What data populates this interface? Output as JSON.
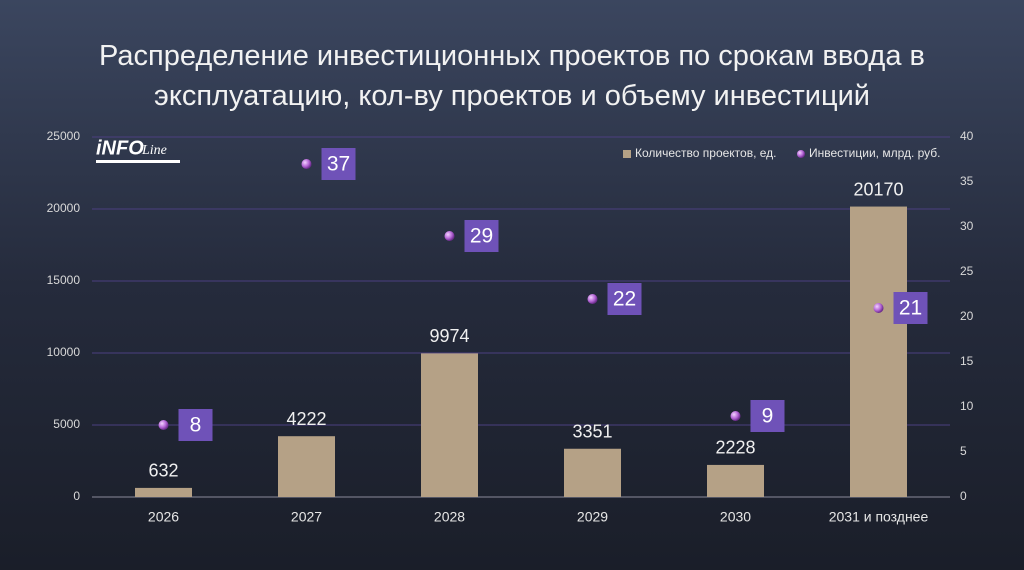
{
  "chart_data": {
    "type": "bar",
    "title": "Распределение инвестиционных проектов по срокам ввода в эксплуатацию, кол-ву проектов и объему инвестиций",
    "logo": {
      "main": "iNFO",
      "script": "Line"
    },
    "categories": [
      "2026",
      "2027",
      "2028",
      "2029",
      "2030",
      "2031 и позднее"
    ],
    "series": [
      {
        "name": "Количество проектов, ед.",
        "type": "bar",
        "color": "#b5a186",
        "values": [
          632,
          4222,
          9974,
          3351,
          2228,
          20170
        ]
      },
      {
        "name": "Инвестиции, млрд. руб.",
        "type": "scatter",
        "axis": "y2",
        "color": "#b466d6",
        "label_color": "#6f52b8",
        "values": [
          8,
          37,
          29,
          22,
          9,
          21
        ]
      }
    ],
    "ylim": [
      0,
      25000
    ],
    "yticks": [
      0,
      5000,
      10000,
      15000,
      20000,
      25000
    ],
    "y2lim": [
      0,
      40
    ],
    "y2ticks": [
      0,
      5,
      10,
      15,
      20,
      25,
      30,
      35,
      40
    ],
    "grid": true,
    "legend": "top-right"
  }
}
